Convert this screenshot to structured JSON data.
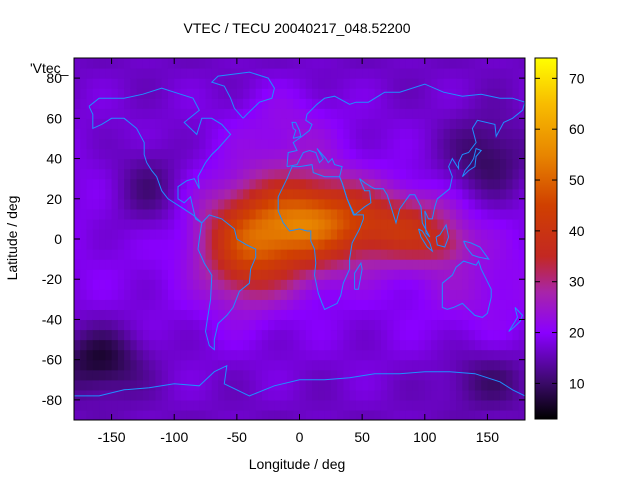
{
  "chart_data": {
    "type": "heatmap",
    "title": "VTEC / TECU 20040217_048.52200",
    "xlabel": "Longitude / deg",
    "ylabel": "Latitude / deg",
    "series_key": "'Vtec_",
    "xlim": [
      -180,
      180
    ],
    "ylim": [
      -90,
      90
    ],
    "x_ticks": [
      -150,
      -100,
      -50,
      0,
      50,
      100,
      150
    ],
    "y_ticks": [
      -80,
      -60,
      -40,
      -20,
      0,
      20,
      40,
      60,
      80
    ],
    "colorbar": {
      "range": [
        3,
        74
      ],
      "ticks": [
        10,
        20,
        30,
        40,
        50,
        60,
        70
      ],
      "stops": [
        {
          "v": 3,
          "color": "#000000"
        },
        {
          "v": 10,
          "color": "#3a0a68"
        },
        {
          "v": 20,
          "color": "#8a00ff"
        },
        {
          "v": 28,
          "color": "#a825a8"
        },
        {
          "v": 35,
          "color": "#c32822"
        },
        {
          "v": 45,
          "color": "#d04000"
        },
        {
          "v": 55,
          "color": "#e88600"
        },
        {
          "v": 65,
          "color": "#f8bc00"
        },
        {
          "v": 74,
          "color": "#ffff00"
        }
      ]
    },
    "field": {
      "background_vtec": 16,
      "features": [
        {
          "lon": -15,
          "lat": 5,
          "slon": 38,
          "slat": 17,
          "amp": 28
        },
        {
          "lon": 25,
          "lat": 12,
          "slon": 30,
          "slat": 13,
          "amp": 14
        },
        {
          "lon": -45,
          "lat": -12,
          "slon": 22,
          "slat": 17,
          "amp": 12
        },
        {
          "lon": 85,
          "lat": 5,
          "slon": 30,
          "slat": 12,
          "amp": 18
        },
        {
          "lon": 115,
          "lat": -3,
          "slon": 15,
          "slat": 6,
          "amp": 6
        },
        {
          "lon": -10,
          "lat": 55,
          "slon": 30,
          "slat": 15,
          "amp": 5
        },
        {
          "lon": 140,
          "lat": -25,
          "slon": 35,
          "slat": 15,
          "amp": 4
        }
      ],
      "dark_regions": [
        {
          "lon": -160,
          "lat": -60,
          "slon": 25,
          "slat": 12,
          "amp": 11
        },
        {
          "lon": 150,
          "lat": 40,
          "slon": 25,
          "slat": 15,
          "amp": 9
        },
        {
          "lon": -120,
          "lat": 25,
          "slon": 20,
          "slat": 15,
          "amp": 7
        },
        {
          "lon": 150,
          "lat": -70,
          "slon": 25,
          "slat": 10,
          "amp": 6
        }
      ]
    }
  }
}
